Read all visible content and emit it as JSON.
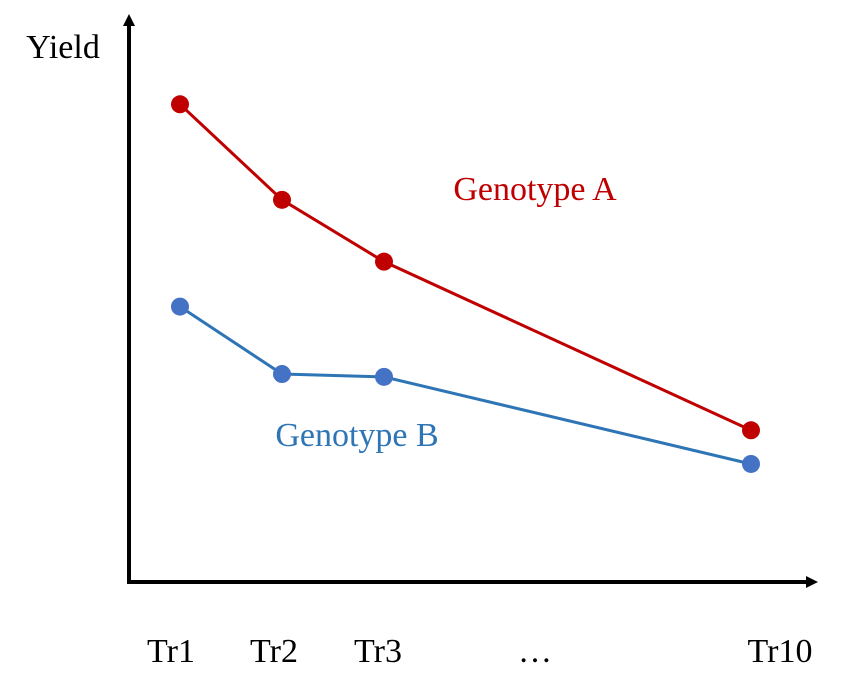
{
  "chart_data": {
    "type": "line",
    "title": "",
    "xlabel": "",
    "ylabel": "Yield",
    "categories": [
      "Tr1",
      "Tr2",
      "Tr3",
      "…",
      "Tr10"
    ],
    "ylim": [
      0,
      100
    ],
    "grid": false,
    "legend": "inline labels",
    "series": [
      {
        "name": "Genotype A",
        "color": "#C00000",
        "points": [
          {
            "x": "Tr1",
            "y": 85
          },
          {
            "x": "Tr2",
            "y": 68
          },
          {
            "x": "Tr3",
            "y": 57
          },
          {
            "x": "Tr10",
            "y": 27
          }
        ]
      },
      {
        "name": "Genotype B",
        "color": "#4472C4",
        "line_color": "#2E75B6",
        "points": [
          {
            "x": "Tr1",
            "y": 49
          },
          {
            "x": "Tr2",
            "y": 37
          },
          {
            "x": "Tr3",
            "y": 36.5
          },
          {
            "x": "Tr10",
            "y": 21
          }
        ]
      }
    ]
  }
}
